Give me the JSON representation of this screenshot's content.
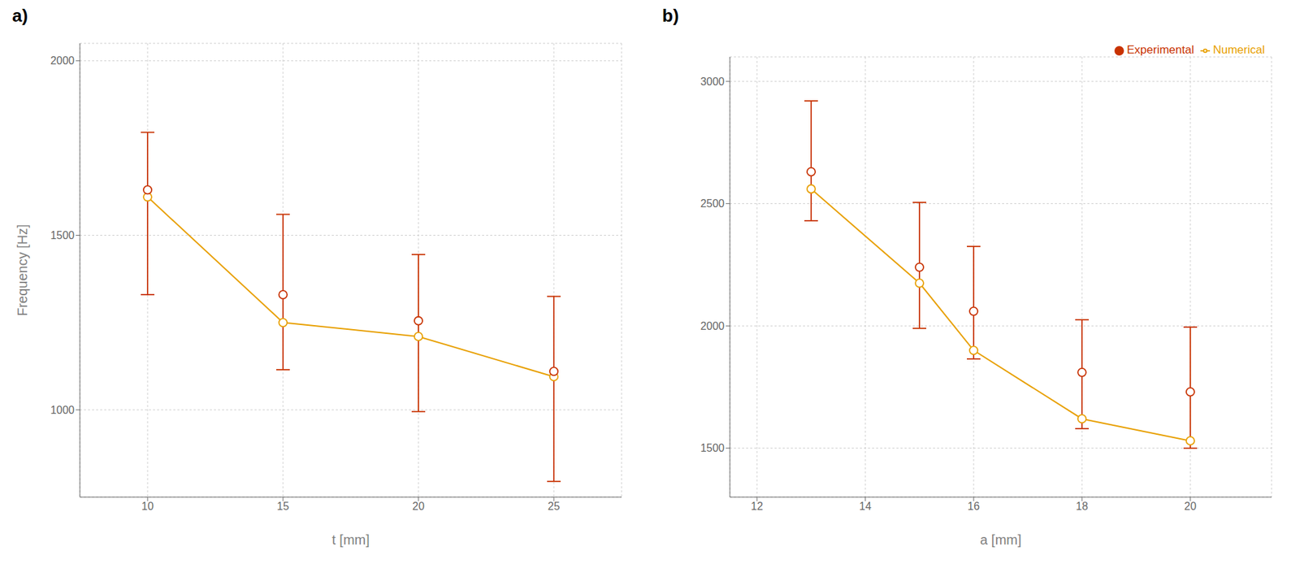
{
  "chart_data": [
    {
      "type": "line",
      "title": "a)",
      "xlabel": "t [mm]",
      "ylabel": "Frequency [Hz]",
      "x": [
        10,
        15,
        20,
        25
      ],
      "xlim": [
        7.5,
        27.5
      ],
      "xticks": [
        10,
        15,
        20,
        25
      ],
      "ylim": [
        750,
        2050
      ],
      "yticks": [
        1000,
        1500,
        2000
      ],
      "grid": true,
      "series": [
        {
          "name": "Numerical",
          "type": "line",
          "marker": "o",
          "color": "#E8A000",
          "values": [
            1610,
            1250,
            1210,
            1095
          ]
        },
        {
          "name": "Experimental",
          "type": "scatter",
          "marker": "o",
          "color": "#C83200",
          "values": [
            1630,
            1330,
            1255,
            1110
          ],
          "error_lo": [
            300,
            215,
            260,
            315
          ],
          "error_hi": [
            165,
            230,
            190,
            215
          ]
        }
      ]
    },
    {
      "type": "line",
      "title": "b)",
      "xlabel": "a [mm]",
      "x": [
        13,
        15,
        16,
        18,
        20
      ],
      "xlim": [
        11.5,
        21.5
      ],
      "xticks": [
        12,
        14,
        16,
        18,
        20
      ],
      "ylim": [
        1300,
        3100
      ],
      "yticks": [
        1500,
        2000,
        2500,
        3000
      ],
      "grid": true,
      "legend": "upper right",
      "series": [
        {
          "name": "Numerical",
          "type": "line",
          "marker": "o",
          "color": "#E8A000",
          "values": [
            2560,
            2175,
            1900,
            1620,
            1530
          ]
        },
        {
          "name": "Experimental",
          "type": "scatter",
          "marker": "o",
          "color": "#C83200",
          "values": [
            2630,
            2240,
            2060,
            1810,
            1730
          ],
          "error_lo": [
            200,
            250,
            195,
            230,
            230
          ],
          "error_hi": [
            290,
            265,
            265,
            215,
            265
          ]
        }
      ]
    }
  ]
}
